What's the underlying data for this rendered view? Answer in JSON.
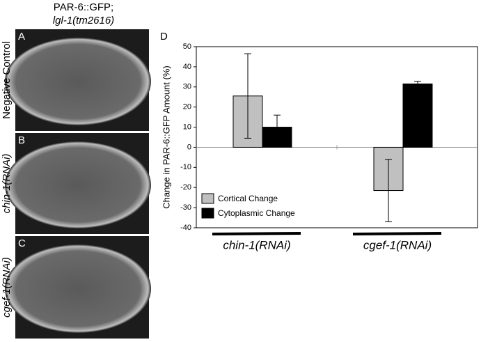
{
  "figure": {
    "title_line1": "PAR-6::GFP;",
    "title_line2": "lgl-1(tm2616)",
    "panels": [
      {
        "letter": "A",
        "label": "Negative Control"
      },
      {
        "letter": "B",
        "label": "chin-1(RNAi)"
      },
      {
        "letter": "C",
        "label": "cgef-1(RNAi)"
      }
    ],
    "chart_letter": "D"
  },
  "chart_data": {
    "type": "bar",
    "y_label": "Change in PAR-6::GFP Amount (%)",
    "categories": [
      "chin-1(RNAi)",
      "cgef-1(RNAi)"
    ],
    "series": [
      {
        "name": "Cortical Change",
        "color": "#c0c0c0",
        "values": [
          25.5,
          -21.5
        ],
        "errors": [
          21,
          15.5
        ]
      },
      {
        "name": "Cytoplasmic Change",
        "color": "#000000",
        "values": [
          10,
          31.5
        ],
        "errors": [
          6,
          1.3
        ]
      }
    ],
    "ylim": [
      -40,
      50
    ],
    "yticks": [
      -40,
      -30,
      -20,
      -10,
      0,
      10,
      20,
      30,
      40,
      50
    ],
    "legend": "lower-left"
  }
}
